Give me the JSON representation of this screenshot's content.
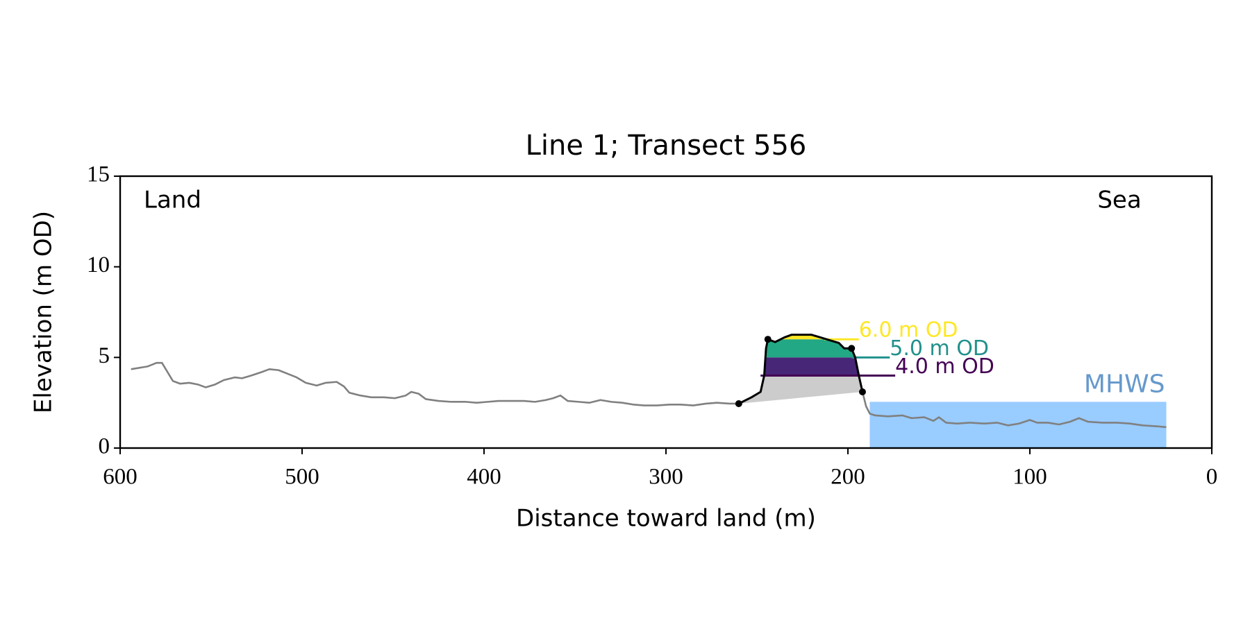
{
  "chart_data": {
    "type": "transect",
    "title": "Line 1; Transect 556",
    "xlabel": "Distance toward land (m)",
    "ylabel": "Elevation (m OD)",
    "xlim": [
      600,
      0
    ],
    "ylim": [
      0,
      15
    ],
    "xticks": [
      600,
      500,
      400,
      300,
      200,
      100,
      0
    ],
    "yticks": [
      0,
      5,
      10,
      15
    ],
    "annotations": [
      {
        "text": "Land",
        "corner": "left"
      },
      {
        "text": "Sea",
        "corner": "right"
      }
    ],
    "series": [
      {
        "role": "profile",
        "color": "#808080",
        "x": [
          594,
          585,
          580,
          577,
          574,
          571,
          567,
          562,
          557,
          553,
          548,
          543,
          537,
          533,
          528,
          522,
          518,
          513,
          508,
          503,
          498,
          492,
          487,
          481,
          477,
          474,
          468,
          462,
          455,
          449,
          443,
          440,
          436,
          432,
          425,
          418,
          410,
          404,
          398,
          392,
          386,
          378,
          372,
          366,
          362,
          358,
          354,
          348,
          342,
          336,
          330,
          324,
          318,
          312,
          305,
          298,
          292,
          285,
          278,
          272,
          265,
          260
        ],
        "values": [
          4.35,
          4.5,
          4.7,
          4.7,
          4.2,
          3.7,
          3.55,
          3.6,
          3.5,
          3.35,
          3.5,
          3.75,
          3.9,
          3.85,
          4.0,
          4.2,
          4.35,
          4.3,
          4.1,
          3.9,
          3.6,
          3.45,
          3.6,
          3.65,
          3.4,
          3.05,
          2.9,
          2.8,
          2.8,
          2.75,
          2.9,
          3.1,
          3.0,
          2.7,
          2.6,
          2.55,
          2.55,
          2.5,
          2.55,
          2.6,
          2.6,
          2.6,
          2.55,
          2.65,
          2.75,
          2.9,
          2.6,
          2.55,
          2.5,
          2.65,
          2.55,
          2.5,
          2.4,
          2.35,
          2.35,
          2.4,
          2.4,
          2.35,
          2.45,
          2.5,
          2.45,
          2.45
        ]
      },
      {
        "role": "profile",
        "color": "#808080",
        "x": [
          192,
          190,
          188,
          185,
          178,
          170,
          165,
          158,
          153,
          150,
          146,
          140,
          133,
          125,
          118,
          112,
          106,
          100,
          96,
          90,
          84,
          78,
          73,
          68,
          60,
          52,
          45,
          38,
          30,
          25
        ],
        "values": [
          3.1,
          2.3,
          1.9,
          1.8,
          1.75,
          1.8,
          1.65,
          1.7,
          1.5,
          1.7,
          1.4,
          1.35,
          1.4,
          1.35,
          1.4,
          1.25,
          1.35,
          1.55,
          1.4,
          1.4,
          1.3,
          1.45,
          1.65,
          1.45,
          1.4,
          1.4,
          1.35,
          1.25,
          1.2,
          1.15
        ]
      },
      {
        "role": "dune",
        "color": "#000000",
        "x": [
          260,
          253,
          248,
          246,
          245,
          244,
          240,
          235,
          231,
          220,
          215,
          210,
          205,
          202,
          198,
          196,
          194,
          192
        ],
        "values": [
          2.45,
          2.8,
          3.1,
          4.0,
          5.5,
          6.0,
          5.85,
          6.1,
          6.25,
          6.25,
          6.1,
          5.95,
          5.8,
          5.5,
          5.5,
          5.0,
          4.0,
          3.1
        ]
      },
      {
        "role": "points",
        "color": "#000000",
        "x": [
          260,
          244,
          198,
          192
        ],
        "values": [
          2.45,
          6.0,
          5.5,
          3.1
        ]
      }
    ],
    "below_fill": "#cccccc",
    "levels": [
      {
        "value": 4.0,
        "label": "4.0 m OD",
        "color": "#440154",
        "fill": "#482677",
        "xlim": [
          248,
          174
        ]
      },
      {
        "value": 5.0,
        "label": "5.0 m OD",
        "color": "#21918c",
        "fill": "#22a884",
        "xlim": [
          198,
          177
        ]
      },
      {
        "value": 6.0,
        "label": "6.0 m OD",
        "color": "#fde725",
        "fill": "#fde725",
        "xlim": [
          213,
          194
        ]
      }
    ],
    "mhws": {
      "label": "MHWS",
      "value": 2.55,
      "xlim": [
        188,
        25
      ],
      "color": "#99ccff",
      "text_color": "#6699cc"
    }
  }
}
